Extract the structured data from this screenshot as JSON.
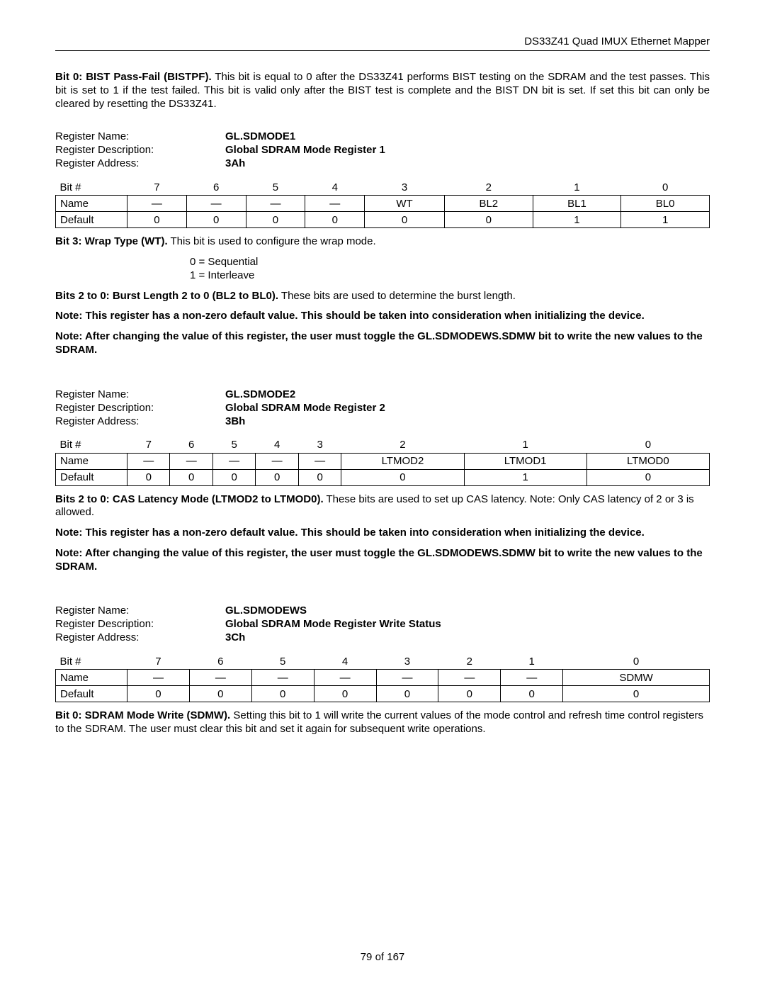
{
  "header": {
    "product": "DS33Z41 Quad IMUX Ethernet Mapper"
  },
  "bit0_para": {
    "lead": "Bit 0: BIST Pass-Fail (BISTPF).",
    "rest": " This bit is equal to 0 after the DS33Z41 performs BIST testing on the SDRAM and the test passes. This bit is set to 1 if the test failed. This bit is valid only after the BIST test is complete and the BIST DN bit is set. If set this bit can only be cleared by resetting the DS33Z41."
  },
  "reg1": {
    "name_label": "Register Name:",
    "desc_label": "Register Description:",
    "addr_label": "Register Address:",
    "name": "GL.SDMODE1",
    "desc": "Global SDRAM Mode Register 1",
    "addr": "3Ah"
  },
  "table1": {
    "row_labels": [
      "Bit #",
      "Name",
      "Default"
    ],
    "bits": [
      "7",
      "6",
      "5",
      "4",
      "3",
      "2",
      "1",
      "0"
    ],
    "names": [
      "—",
      "—",
      "—",
      "—",
      "WT",
      "BL2",
      "BL1",
      "BL0"
    ],
    "default": [
      "0",
      "0",
      "0",
      "0",
      "0",
      "0",
      "1",
      "1"
    ]
  },
  "bit3_desc": {
    "lead": "Bit 3: Wrap Type (WT).",
    "rest": " This bit is used to configure the wrap mode."
  },
  "bit3_vals": {
    "l0": "0 = Sequential",
    "l1": "1 = Interleave"
  },
  "bits2_0_desc_1": {
    "lead": "Bits 2 to 0: Burst Length 2 to 0 (BL2 to BL0).",
    "rest": " These bits are used to determine the burst length."
  },
  "note_nonzero": "Note: This register has a non-zero default value. This should be taken into consideration when initializing the device.",
  "note_toggle": "Note: After changing the value of this register, the user must toggle the GL.SDMODEWS.SDMW bit to write the new values to the SDRAM.",
  "reg2": {
    "name_label": "Register Name:",
    "desc_label": "Register Description:",
    "addr_label": "Register Address:",
    "name": "GL.SDMODE2",
    "desc": "Global SDRAM Mode Register 2",
    "addr": "3Bh"
  },
  "table2": {
    "row_labels": [
      "Bit #",
      "Name",
      "Default"
    ],
    "bits": [
      "7",
      "6",
      "5",
      "4",
      "3",
      "2",
      "1",
      "0"
    ],
    "names": [
      "—",
      "—",
      "—",
      "—",
      "—",
      "LTMOD2",
      "LTMOD1",
      "LTMOD0"
    ],
    "default": [
      "0",
      "0",
      "0",
      "0",
      "0",
      "0",
      "1",
      "0"
    ]
  },
  "bits2_0_desc_2": {
    "lead": "Bits 2 to 0: CAS Latency Mode (LTMOD2 to LTMOD0).",
    "rest": " These bits are used to set up CAS latency. Note: Only CAS latency of 2 or 3 is allowed."
  },
  "reg3": {
    "name_label": "Register Name:",
    "desc_label": "Register Description:",
    "addr_label": "Register Address:",
    "name": "GL.SDMODEWS",
    "desc": "Global SDRAM Mode Register Write Status",
    "addr": "3Ch"
  },
  "table3": {
    "row_labels": [
      "Bit #",
      "Name",
      "Default"
    ],
    "bits": [
      "7",
      "6",
      "5",
      "4",
      "3",
      "2",
      "1",
      "0"
    ],
    "names": [
      "—",
      "—",
      "—",
      "—",
      "—",
      "—",
      "—",
      "SDMW"
    ],
    "default": [
      "0",
      "0",
      "0",
      "0",
      "0",
      "0",
      "0",
      "0"
    ]
  },
  "sdmw_desc": {
    "lead": "Bit 0: SDRAM Mode Write (SDMW).",
    "rest": " Setting this bit to 1 will write the current values of the mode control and refresh time control registers to the SDRAM. The user must clear this bit and set it again for subsequent write operations."
  },
  "footer": "79 of 167"
}
